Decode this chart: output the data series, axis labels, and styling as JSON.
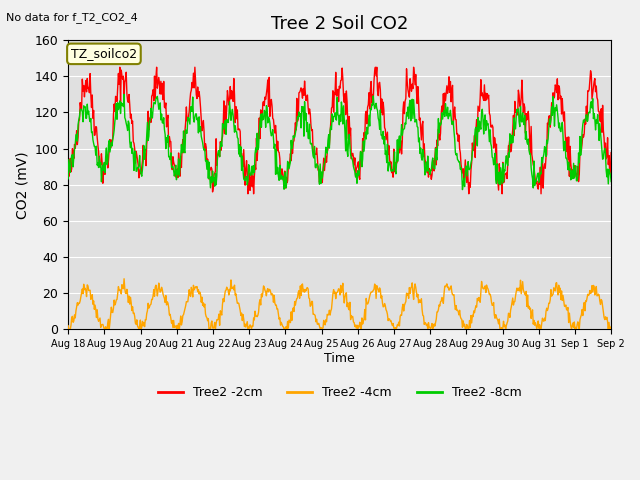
{
  "title": "Tree 2 Soil CO2",
  "no_data_label": "No data for f_T2_CO2_4",
  "tz_label": "TZ_soilco2",
  "ylabel": "CO2 (mV)",
  "xlabel": "Time",
  "ylim": [
    0,
    160
  ],
  "yticks": [
    0,
    20,
    40,
    60,
    80,
    100,
    120,
    140,
    160
  ],
  "plot_bg_color": "#e0e0e0",
  "fig_bg_color": "#f0f0f0",
  "line_colors": {
    "red": "#ff0000",
    "orange": "#ffa500",
    "green": "#00cc00"
  },
  "legend_labels": [
    "Tree2 -2cm",
    "Tree2 -4cm",
    "Tree2 -8cm"
  ],
  "x_tick_labels": [
    "Aug 18",
    "Aug 19",
    "Aug 20",
    "Aug 21",
    "Aug 22",
    "Aug 23",
    "Aug 24",
    "Aug 25",
    "Aug 26",
    "Aug 27",
    "Aug 28",
    "Aug 29",
    "Aug 30",
    "Aug 31",
    "Sep 1",
    "Sep 2"
  ],
  "num_days": 16,
  "points_per_day": 48
}
